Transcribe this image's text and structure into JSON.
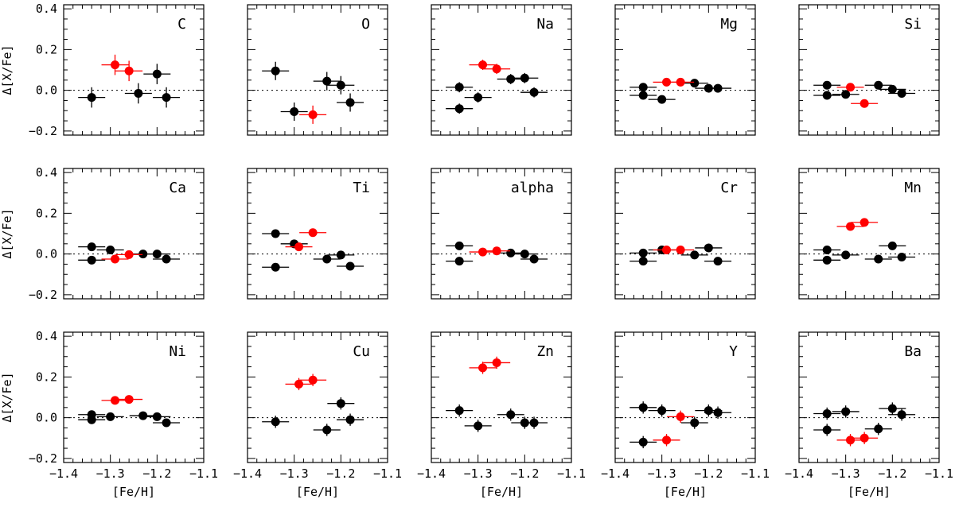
{
  "figure": {
    "ylabel": "Δ[X/Fe]",
    "xlabel": "[Fe/H]",
    "colors": {
      "black": "#000000",
      "red": "#ff0000"
    },
    "xlim": [
      -1.4,
      -1.1
    ],
    "ylim": [
      -0.22,
      0.42
    ],
    "xticks": [
      -1.4,
      -1.3,
      -1.2,
      -1.1
    ],
    "xtick_labels": [
      "−1.4",
      "−1.3",
      "−1.2",
      "−1.1"
    ],
    "yticks": [
      -0.2,
      0.0,
      0.2,
      0.4
    ],
    "ytick_labels": [
      "−0.2",
      "0.0",
      "0.2",
      "0.4"
    ],
    "layout": "3 rows × 5 columns, shared axes, dotted zero line"
  },
  "chart_data": [
    {
      "type": "scatter",
      "title": "C",
      "series": [
        {
          "color": "black",
          "points": [
            [
              -1.34,
              -0.035,
              0.05
            ],
            [
              -1.24,
              -0.015,
              0.05
            ],
            [
              -1.2,
              0.08,
              0.05
            ],
            [
              -1.18,
              -0.035,
              0.05
            ]
          ]
        },
        {
          "color": "red",
          "points": [
            [
              -1.29,
              0.125,
              0.05
            ],
            [
              -1.26,
              0.095,
              0.05
            ]
          ]
        }
      ]
    },
    {
      "type": "scatter",
      "title": "O",
      "series": [
        {
          "color": "black",
          "points": [
            [
              -1.34,
              0.095,
              0.045
            ],
            [
              -1.3,
              -0.105,
              0.045
            ],
            [
              -1.23,
              0.045,
              0.045
            ],
            [
              -1.2,
              0.025,
              0.045
            ],
            [
              -1.18,
              -0.06,
              0.045
            ]
          ]
        },
        {
          "color": "red",
          "points": [
            [
              -1.26,
              -0.12,
              0.045
            ]
          ]
        }
      ]
    },
    {
      "type": "scatter",
      "title": "Na",
      "series": [
        {
          "color": "black",
          "points": [
            [
              -1.34,
              0.015,
              0.025
            ],
            [
              -1.34,
              -0.09,
              0.025
            ],
            [
              -1.3,
              -0.035,
              0.025
            ],
            [
              -1.23,
              0.055,
              0.025
            ],
            [
              -1.2,
              0.06,
              0.025
            ],
            [
              -1.18,
              -0.01,
              0.025
            ]
          ]
        },
        {
          "color": "red",
          "points": [
            [
              -1.29,
              0.125,
              0.025
            ],
            [
              -1.26,
              0.105,
              0.025
            ]
          ]
        }
      ]
    },
    {
      "type": "scatter",
      "title": "Mg",
      "series": [
        {
          "color": "black",
          "points": [
            [
              -1.34,
              0.015,
              0.02
            ],
            [
              -1.34,
              -0.025,
              0.02
            ],
            [
              -1.3,
              -0.045,
              0.02
            ],
            [
              -1.23,
              0.035,
              0.02
            ],
            [
              -1.2,
              0.01,
              0.02
            ],
            [
              -1.18,
              0.01,
              0.02
            ]
          ]
        },
        {
          "color": "red",
          "points": [
            [
              -1.29,
              0.04,
              0.02
            ],
            [
              -1.26,
              0.04,
              0.02
            ]
          ]
        }
      ]
    },
    {
      "type": "scatter",
      "title": "Si",
      "series": [
        {
          "color": "black",
          "points": [
            [
              -1.34,
              0.025,
              0.02
            ],
            [
              -1.34,
              -0.025,
              0.02
            ],
            [
              -1.3,
              -0.02,
              0.02
            ],
            [
              -1.23,
              0.025,
              0.02
            ],
            [
              -1.2,
              0.005,
              0.02
            ],
            [
              -1.18,
              -0.015,
              0.02
            ]
          ]
        },
        {
          "color": "red",
          "points": [
            [
              -1.29,
              0.015,
              0.02
            ],
            [
              -1.26,
              -0.065,
              0.02
            ]
          ]
        }
      ]
    },
    {
      "type": "scatter",
      "title": "Ca",
      "series": [
        {
          "color": "black",
          "points": [
            [
              -1.34,
              0.035,
              0.012
            ],
            [
              -1.34,
              -0.03,
              0.012
            ],
            [
              -1.3,
              0.02,
              0.012
            ],
            [
              -1.23,
              0.0,
              0.012
            ],
            [
              -1.2,
              0.0,
              0.012
            ],
            [
              -1.18,
              -0.025,
              0.012
            ]
          ]
        },
        {
          "color": "red",
          "points": [
            [
              -1.29,
              -0.025,
              0.012
            ],
            [
              -1.26,
              -0.003,
              0.012
            ]
          ]
        }
      ]
    },
    {
      "type": "scatter",
      "title": "Ti",
      "series": [
        {
          "color": "black",
          "points": [
            [
              -1.34,
              0.1,
              0.012
            ],
            [
              -1.34,
              -0.065,
              0.012
            ],
            [
              -1.3,
              0.05,
              0.012
            ],
            [
              -1.23,
              -0.025,
              0.012
            ],
            [
              -1.2,
              -0.005,
              0.012
            ],
            [
              -1.18,
              -0.06,
              0.012
            ]
          ]
        },
        {
          "color": "red",
          "points": [
            [
              -1.29,
              0.035,
              0.012
            ],
            [
              -1.26,
              0.105,
              0.012
            ]
          ]
        }
      ]
    },
    {
      "type": "scatter",
      "title": "alpha",
      "series": [
        {
          "color": "black",
          "points": [
            [
              -1.34,
              0.04,
              0.012
            ],
            [
              -1.34,
              -0.035,
              0.012
            ],
            [
              -1.23,
              0.005,
              0.012
            ],
            [
              -1.2,
              0.0,
              0.012
            ],
            [
              -1.18,
              -0.025,
              0.012
            ]
          ]
        },
        {
          "color": "red",
          "points": [
            [
              -1.29,
              0.01,
              0.012
            ],
            [
              -1.26,
              0.015,
              0.012
            ]
          ]
        }
      ]
    },
    {
      "type": "scatter",
      "title": "Cr",
      "series": [
        {
          "color": "black",
          "points": [
            [
              -1.34,
              0.005,
              0.012
            ],
            [
              -1.34,
              -0.035,
              0.012
            ],
            [
              -1.3,
              0.02,
              0.012
            ],
            [
              -1.23,
              -0.005,
              0.012
            ],
            [
              -1.2,
              0.03,
              0.012
            ],
            [
              -1.18,
              -0.035,
              0.012
            ]
          ]
        },
        {
          "color": "red",
          "points": [
            [
              -1.29,
              0.02,
              0.012
            ],
            [
              -1.26,
              0.02,
              0.012
            ]
          ]
        }
      ]
    },
    {
      "type": "scatter",
      "title": "Mn",
      "series": [
        {
          "color": "black",
          "points": [
            [
              -1.34,
              0.02,
              0.012
            ],
            [
              -1.34,
              -0.03,
              0.012
            ],
            [
              -1.3,
              -0.005,
              0.012
            ],
            [
              -1.23,
              -0.025,
              0.012
            ],
            [
              -1.2,
              0.04,
              0.012
            ],
            [
              -1.18,
              -0.015,
              0.012
            ]
          ]
        },
        {
          "color": "red",
          "points": [
            [
              -1.29,
              0.135,
              0.012
            ],
            [
              -1.26,
              0.155,
              0.012
            ]
          ]
        }
      ]
    },
    {
      "type": "scatter",
      "title": "Ni",
      "series": [
        {
          "color": "black",
          "points": [
            [
              -1.34,
              0.015,
              0.012
            ],
            [
              -1.34,
              -0.01,
              0.012
            ],
            [
              -1.3,
              0.005,
              0.012
            ],
            [
              -1.23,
              0.01,
              0.012
            ],
            [
              -1.2,
              0.005,
              0.012
            ],
            [
              -1.18,
              -0.025,
              0.012
            ]
          ]
        },
        {
          "color": "red",
          "points": [
            [
              -1.29,
              0.085,
              0.012
            ],
            [
              -1.26,
              0.09,
              0.012
            ]
          ]
        }
      ]
    },
    {
      "type": "scatter",
      "title": "Cu",
      "series": [
        {
          "color": "black",
          "points": [
            [
              -1.34,
              -0.02,
              0.03
            ],
            [
              -1.23,
              -0.06,
              0.03
            ],
            [
              -1.2,
              0.07,
              0.03
            ],
            [
              -1.18,
              -0.01,
              0.03
            ]
          ]
        },
        {
          "color": "red",
          "points": [
            [
              -1.29,
              0.165,
              0.03
            ],
            [
              -1.26,
              0.185,
              0.03
            ]
          ]
        }
      ]
    },
    {
      "type": "scatter",
      "title": "Zn",
      "series": [
        {
          "color": "black",
          "points": [
            [
              -1.34,
              0.035,
              0.03
            ],
            [
              -1.3,
              -0.04,
              0.03
            ],
            [
              -1.23,
              0.015,
              0.03
            ],
            [
              -1.2,
              -0.025,
              0.03
            ],
            [
              -1.18,
              -0.025,
              0.03
            ]
          ]
        },
        {
          "color": "red",
          "points": [
            [
              -1.29,
              0.245,
              0.03
            ],
            [
              -1.26,
              0.27,
              0.03
            ]
          ]
        }
      ]
    },
    {
      "type": "scatter",
      "title": "Y",
      "series": [
        {
          "color": "black",
          "points": [
            [
              -1.34,
              0.05,
              0.03
            ],
            [
              -1.34,
              -0.12,
              0.03
            ],
            [
              -1.3,
              0.035,
              0.03
            ],
            [
              -1.23,
              -0.025,
              0.03
            ],
            [
              -1.2,
              0.035,
              0.03
            ],
            [
              -1.18,
              0.025,
              0.03
            ]
          ]
        },
        {
          "color": "red",
          "points": [
            [
              -1.29,
              -0.11,
              0.03
            ],
            [
              -1.26,
              0.005,
              0.03
            ]
          ]
        }
      ]
    },
    {
      "type": "scatter",
      "title": "Ba",
      "series": [
        {
          "color": "black",
          "points": [
            [
              -1.34,
              0.02,
              0.03
            ],
            [
              -1.34,
              -0.06,
              0.03
            ],
            [
              -1.3,
              0.03,
              0.03
            ],
            [
              -1.23,
              -0.055,
              0.03
            ],
            [
              -1.2,
              0.045,
              0.03
            ],
            [
              -1.18,
              0.015,
              0.03
            ]
          ]
        },
        {
          "color": "red",
          "points": [
            [
              -1.29,
              -0.11,
              0.03
            ],
            [
              -1.26,
              -0.1,
              0.03
            ]
          ]
        }
      ]
    }
  ]
}
